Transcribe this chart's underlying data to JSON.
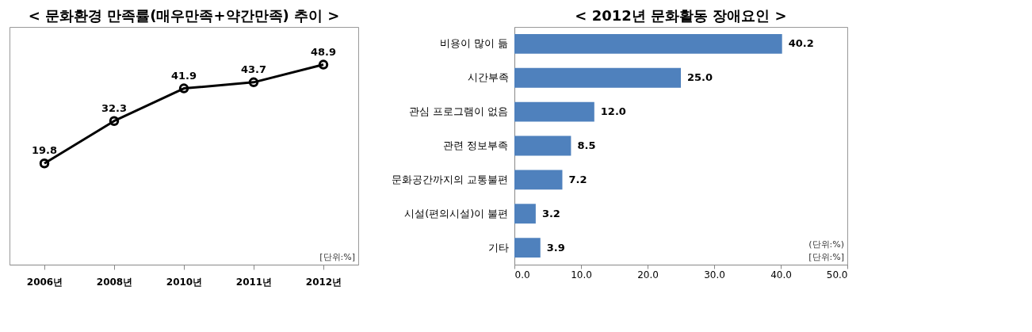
{
  "chart_data": [
    {
      "type": "line",
      "title": "< 문화환경 만족률(매우만족+약간만족) 추이 >",
      "annotations": [
        "[단위:%]"
      ],
      "categories": [
        "2006년",
        "2008년",
        "2010년",
        "2011년",
        "2012년"
      ],
      "series": [
        {
          "color": "#000000",
          "values": [
            19.8,
            32.3,
            41.9,
            43.7,
            48.9
          ]
        }
      ],
      "data_labels": true,
      "marker": "circle",
      "grid": false
    },
    {
      "type": "bar",
      "orientation": "horizontal",
      "title": "< 2012년 문화활동 장애요인 >",
      "annotations": [
        "(단위:%)",
        "[단위:%]"
      ],
      "categories": [
        "비용이 많이 듦",
        "시간부족",
        "관심 프로그램이 없음",
        "관련 정보부족",
        "문화공간까지의 교통불편",
        "시설(편의시설)이 불편",
        "기타"
      ],
      "series": [
        {
          "color": "#4f81bd",
          "values": [
            40.2,
            25.0,
            12.0,
            8.5,
            7.2,
            3.2,
            3.9
          ],
          "value_labels": [
            "40.2",
            "25.0",
            "12.0",
            "8.5",
            "7.2",
            "3.2",
            "3.9"
          ]
        }
      ],
      "xlim": [
        0,
        50
      ],
      "xticks": [
        {
          "value": 0,
          "label": "0.0"
        },
        {
          "value": 10,
          "label": "10.0"
        },
        {
          "value": 20,
          "label": "20.0"
        },
        {
          "value": 30,
          "label": "30.0"
        },
        {
          "value": 40,
          "label": "40.0"
        },
        {
          "value": 50,
          "label": "50.0"
        }
      ],
      "grid": false
    }
  ]
}
